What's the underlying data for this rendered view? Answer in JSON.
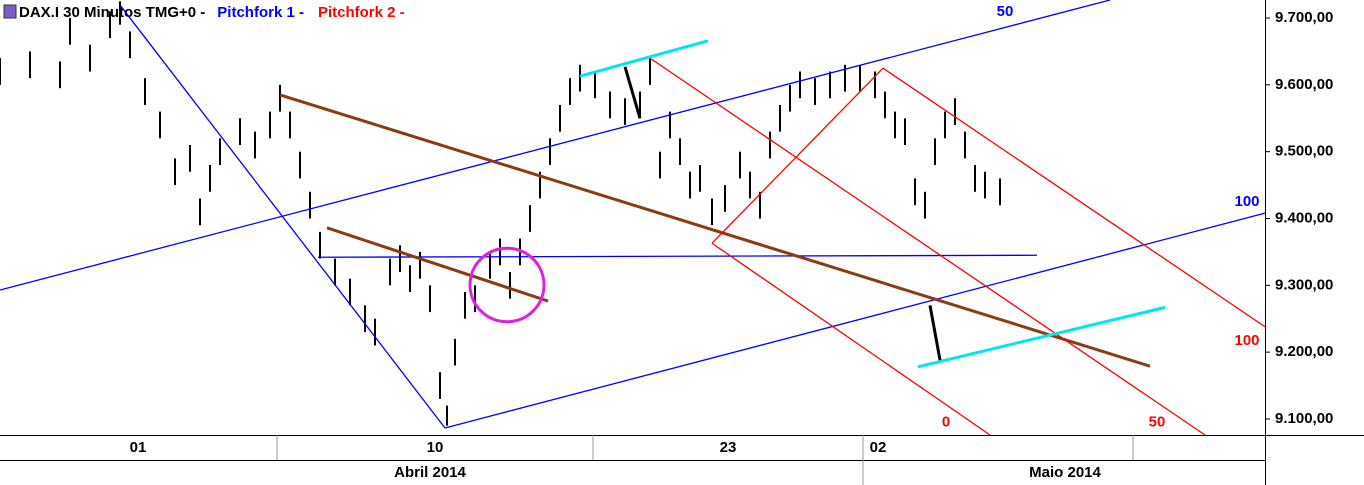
{
  "chart_data": {
    "type": "ohlc",
    "title": "DAX.I 30 Minutos TMG+0 -",
    "subtitles": [
      {
        "text": "Pitchfork 1 -",
        "color": "#0000ff"
      },
      {
        "text": "Pitchfork 2 -",
        "color": "#ff0000"
      }
    ],
    "color": "#000000",
    "x": [
      0,
      3,
      6,
      7,
      9,
      11,
      12,
      13,
      14.5,
      16,
      17.5,
      19,
      20,
      21,
      22,
      24,
      25.5,
      27,
      28,
      29,
      30,
      31,
      32,
      33.5,
      35,
      36.5,
      37.5,
      39,
      40,
      41,
      42,
      43,
      44,
      44.7,
      45.5,
      46.5,
      47.5,
      49,
      50,
      51,
      52,
      53,
      54,
      55,
      56,
      57,
      58,
      59.5,
      61,
      62.5,
      64,
      65,
      66,
      67,
      68,
      69,
      70,
      71.2,
      72.5,
      74,
      75,
      76,
      77,
      78,
      79,
      80,
      81.5,
      83,
      84.5,
      86,
      87.5,
      88.5,
      89.5,
      90.5,
      91.5,
      92.5,
      93.5,
      94.5,
      95.5,
      96.5,
      97.5,
      98.5,
      100
    ],
    "high": [
      9640,
      9650,
      9635,
      9700,
      9660,
      9710,
      9725,
      9680,
      9610,
      9560,
      9490,
      9510,
      9430,
      9480,
      9520,
      9550,
      9530,
      9560,
      9600,
      9560,
      9500,
      9440,
      9380,
      9340,
      9310,
      9270,
      9250,
      9340,
      9360,
      9330,
      9350,
      9300,
      9170,
      9120,
      9220,
      9290,
      9300,
      9350,
      9370,
      9320,
      9370,
      9420,
      9470,
      9520,
      9570,
      9610,
      9630,
      9620,
      9590,
      9580,
      9590,
      9640,
      9500,
      9560,
      9520,
      9470,
      9480,
      9430,
      9450,
      9500,
      9470,
      9440,
      9530,
      9570,
      9600,
      9620,
      9610,
      9620,
      9630,
      9630,
      9620,
      9590,
      9560,
      9550,
      9460,
      9440,
      9520,
      9560,
      9580,
      9530,
      9480,
      9470,
      9460
    ],
    "low": [
      9600,
      9610,
      9595,
      9660,
      9620,
      9670,
      9690,
      9640,
      9570,
      9520,
      9450,
      9470,
      9390,
      9440,
      9480,
      9510,
      9490,
      9520,
      9560,
      9520,
      9460,
      9400,
      9340,
      9300,
      9270,
      9230,
      9210,
      9300,
      9320,
      9290,
      9310,
      9260,
      9130,
      9090,
      9180,
      9250,
      9260,
      9310,
      9330,
      9280,
      9330,
      9380,
      9430,
      9480,
      9530,
      9570,
      9590,
      9580,
      9550,
      9540,
      9550,
      9600,
      9460,
      9520,
      9480,
      9430,
      9440,
      9390,
      9410,
      9460,
      9430,
      9400,
      9490,
      9530,
      9560,
      9580,
      9570,
      9580,
      9590,
      9590,
      9580,
      9550,
      9520,
      9510,
      9420,
      9400,
      9480,
      9520,
      9540,
      9490,
      9440,
      9430,
      9420
    ],
    "xlim": [
      0,
      126.5
    ],
    "ylim": [
      9076,
      9727
    ],
    "yticks": [
      {
        "value": 9100,
        "label": "9.100,00"
      },
      {
        "value": 9200,
        "label": "9.200,00"
      },
      {
        "value": 9300,
        "label": "9.300,00"
      },
      {
        "value": 9400,
        "label": "9.400,00"
      },
      {
        "value": 9500,
        "label": "9.500,00"
      },
      {
        "value": 9600,
        "label": "9.600,00"
      },
      {
        "value": 9700,
        "label": "9.700,00"
      }
    ],
    "xticks": [
      {
        "value": 13.8,
        "label": "01"
      },
      {
        "value": 43.5,
        "label": "10"
      },
      {
        "value": 72.8,
        "label": "23"
      },
      {
        "value": 87.8,
        "label": "02"
      }
    ],
    "day_dividers": [
      27.7,
      59.3,
      86.3,
      113.3
    ],
    "months": [
      {
        "value": 43,
        "label": "Abril 2014"
      },
      {
        "value": 106.5,
        "label": "Maio 2014"
      }
    ],
    "month_dividers": [
      86.3
    ],
    "lines": [
      {
        "color": "#0000ff",
        "points": [
          [
            12,
            9719.5
          ],
          [
            44.5,
            9086.5
          ]
        ]
      },
      {
        "color": "#0000ff",
        "points": [
          [
            0,
            9293
          ],
          [
            111,
            9727
          ]
        ]
      },
      {
        "color": "#0000ff",
        "points": [
          [
            44.5,
            9086.5
          ],
          [
            126.5,
            9408
          ]
        ]
      },
      {
        "color": "#0000ff",
        "points": [
          [
            31.8,
            9342
          ],
          [
            103.7,
            9345
          ]
        ]
      },
      {
        "color": "#8b3a12",
        "points": [
          [
            28,
            9585
          ],
          [
            115,
            9179
          ]
        ]
      },
      {
        "color": "#8b3a12",
        "points": [
          [
            32.7,
            9386
          ],
          [
            54.8,
            9276.5
          ]
        ]
      },
      {
        "color": "#ff0000",
        "points": [
          [
            71.2,
            9363
          ],
          [
            88.3,
            9625
          ]
        ]
      },
      {
        "color": "#ff0000",
        "points": [
          [
            71.2,
            9363
          ],
          [
            99,
            9076
          ]
        ]
      },
      {
        "color": "#ff0000",
        "points": [
          [
            65,
            9640
          ],
          [
            120.5,
            9076
          ]
        ]
      },
      {
        "color": "#ff0000",
        "points": [
          [
            88.3,
            9625
          ],
          [
            126.5,
            9238
          ]
        ]
      },
      {
        "color": "#00e5ee",
        "points": [
          [
            58,
            9613
          ],
          [
            70.8,
            9666
          ]
        ]
      },
      {
        "color": "#00e5ee",
        "points": [
          [
            91.8,
            9178
          ],
          [
            116.5,
            9267
          ]
        ]
      },
      {
        "color": "#000000",
        "points": [
          [
            62.5,
            9627
          ],
          [
            64,
            9550
          ]
        ]
      },
      {
        "color": "#000000",
        "points": [
          [
            93,
            9270
          ],
          [
            94,
            9188
          ]
        ]
      }
    ],
    "circle": {
      "x": 50.7,
      "y": 9300.5,
      "rx": 3.7,
      "ry": 55,
      "color": "#e020e0"
    },
    "labels": [
      {
        "text": "50",
        "x": 100.5,
        "y": 9709,
        "color": "#0000ff"
      },
      {
        "text": "100",
        "x": 124.7,
        "y": 9425,
        "color": "#0000ff"
      },
      {
        "text": "100",
        "x": 124.7,
        "y": 9217,
        "color": "#ff0000"
      },
      {
        "text": "0",
        "x": 94.6,
        "y": 9095,
        "color": "#ff0000"
      },
      {
        "text": "50",
        "x": 115.7,
        "y": 9095,
        "color": "#ff0000"
      }
    ]
  }
}
